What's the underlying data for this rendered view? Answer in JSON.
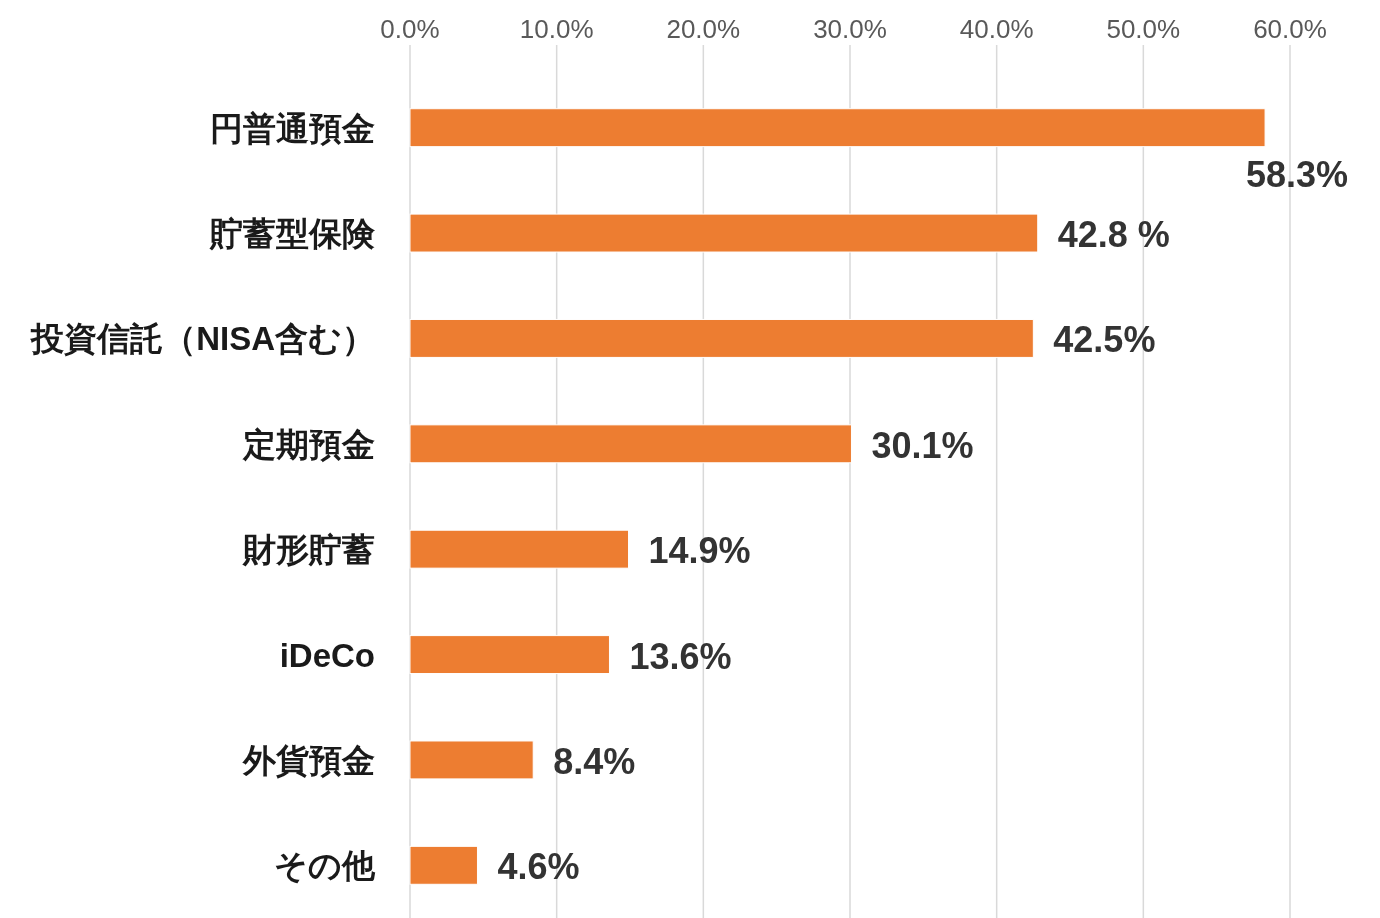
{
  "chart_data": {
    "type": "bar",
    "orientation": "horizontal",
    "categories": [
      "円普通預金",
      "貯蓄型保険",
      "投資信託（NISA含む）",
      "定期預金",
      "財形貯蓄",
      "iDeCo",
      "外貨預金",
      "その他"
    ],
    "values": [
      58.3,
      42.8,
      42.5,
      30.1,
      14.9,
      13.6,
      8.4,
      4.6
    ],
    "value_labels": [
      "58.3%",
      "42.8 %",
      "42.5%",
      "30.1%",
      "14.9%",
      "13.6%",
      "8.4%",
      "4.6%"
    ],
    "color": "#ed7d31",
    "xlim": [
      0,
      60
    ],
    "xticks": [
      {
        "value": 0,
        "label": "0.0%"
      },
      {
        "value": 10,
        "label": "10.0%"
      },
      {
        "value": 20,
        "label": "20.0%"
      },
      {
        "value": 30,
        "label": "30.0%"
      },
      {
        "value": 40,
        "label": "40.0%"
      },
      {
        "value": 50,
        "label": "50.0%"
      },
      {
        "value": 60,
        "label": "60.0%"
      }
    ],
    "grid": "x"
  }
}
